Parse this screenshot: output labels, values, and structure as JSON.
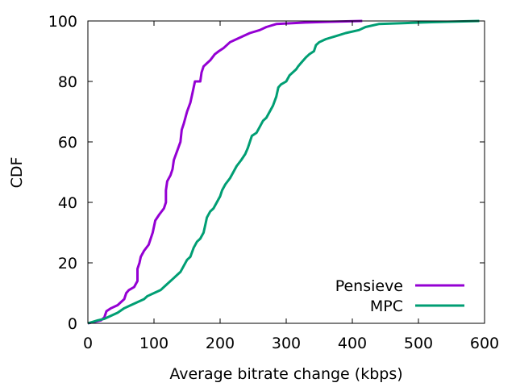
{
  "chart_data": {
    "type": "line",
    "title": "",
    "xlabel": "Average bitrate change (kbps)",
    "ylabel": "CDF",
    "xlim": [
      0,
      600
    ],
    "ylim": [
      0,
      100
    ],
    "xticks": [
      "0",
      "100",
      "200",
      "300",
      "400",
      "500",
      "600"
    ],
    "yticks": [
      "0",
      "20",
      "40",
      "60",
      "80",
      "100"
    ],
    "grid": false,
    "legend_position": "bottom-right",
    "series": [
      {
        "name": "Pensieve",
        "color": "#9400d3",
        "points": [
          [
            0,
            0
          ],
          [
            20,
            1
          ],
          [
            25,
            2
          ],
          [
            28,
            4
          ],
          [
            35,
            5
          ],
          [
            45,
            6
          ],
          [
            55,
            8
          ],
          [
            58,
            10
          ],
          [
            62,
            11
          ],
          [
            70,
            12
          ],
          [
            75,
            14
          ],
          [
            75,
            18
          ],
          [
            78,
            20
          ],
          [
            80,
            22
          ],
          [
            85,
            24
          ],
          [
            92,
            26
          ],
          [
            95,
            28
          ],
          [
            98,
            30
          ],
          [
            100,
            32
          ],
          [
            102,
            34
          ],
          [
            108,
            36
          ],
          [
            115,
            38
          ],
          [
            118,
            40
          ],
          [
            118,
            44
          ],
          [
            120,
            47
          ],
          [
            125,
            49
          ],
          [
            128,
            51
          ],
          [
            130,
            54
          ],
          [
            135,
            57
          ],
          [
            140,
            60
          ],
          [
            142,
            64
          ],
          [
            145,
            66
          ],
          [
            150,
            70
          ],
          [
            155,
            73
          ],
          [
            158,
            76
          ],
          [
            162,
            80
          ],
          [
            170,
            80
          ],
          [
            172,
            83
          ],
          [
            175,
            85
          ],
          [
            180,
            86
          ],
          [
            185,
            87
          ],
          [
            192,
            89
          ],
          [
            198,
            90
          ],
          [
            205,
            91
          ],
          [
            215,
            93
          ],
          [
            225,
            94
          ],
          [
            235,
            95
          ],
          [
            245,
            96
          ],
          [
            260,
            97
          ],
          [
            270,
            98
          ],
          [
            285,
            99
          ],
          [
            330,
            99.5
          ],
          [
            360,
            99.7
          ],
          [
            415,
            100
          ]
        ]
      },
      {
        "name": "MPC",
        "color": "#009e73",
        "points": [
          [
            0,
            0
          ],
          [
            15,
            1
          ],
          [
            25,
            1.5
          ],
          [
            35,
            2.5
          ],
          [
            45,
            3.5
          ],
          [
            55,
            5
          ],
          [
            65,
            6
          ],
          [
            75,
            7
          ],
          [
            85,
            8
          ],
          [
            90,
            9
          ],
          [
            100,
            10
          ],
          [
            110,
            11
          ],
          [
            115,
            12
          ],
          [
            120,
            13
          ],
          [
            130,
            15
          ],
          [
            135,
            16
          ],
          [
            140,
            17
          ],
          [
            145,
            19
          ],
          [
            150,
            21
          ],
          [
            155,
            22
          ],
          [
            160,
            25
          ],
          [
            165,
            27
          ],
          [
            170,
            28
          ],
          [
            175,
            30
          ],
          [
            178,
            33
          ],
          [
            180,
            35
          ],
          [
            185,
            37
          ],
          [
            190,
            38
          ],
          [
            195,
            40
          ],
          [
            200,
            42
          ],
          [
            203,
            44
          ],
          [
            208,
            46
          ],
          [
            215,
            48
          ],
          [
            220,
            50
          ],
          [
            225,
            52
          ],
          [
            232,
            54
          ],
          [
            238,
            56
          ],
          [
            242,
            58
          ],
          [
            245,
            60
          ],
          [
            248,
            62
          ],
          [
            255,
            63
          ],
          [
            260,
            65
          ],
          [
            265,
            67
          ],
          [
            270,
            68
          ],
          [
            275,
            70
          ],
          [
            280,
            72
          ],
          [
            285,
            75
          ],
          [
            288,
            78
          ],
          [
            292,
            79
          ],
          [
            300,
            80
          ],
          [
            305,
            82
          ],
          [
            310,
            83
          ],
          [
            315,
            84
          ],
          [
            318,
            85
          ],
          [
            322,
            86
          ],
          [
            330,
            88
          ],
          [
            335,
            89
          ],
          [
            342,
            90
          ],
          [
            345,
            92
          ],
          [
            350,
            93
          ],
          [
            360,
            94
          ],
          [
            375,
            95
          ],
          [
            390,
            96
          ],
          [
            410,
            97
          ],
          [
            420,
            98
          ],
          [
            440,
            99
          ],
          [
            480,
            99.3
          ],
          [
            520,
            99.6
          ],
          [
            592,
            100
          ]
        ]
      }
    ]
  }
}
